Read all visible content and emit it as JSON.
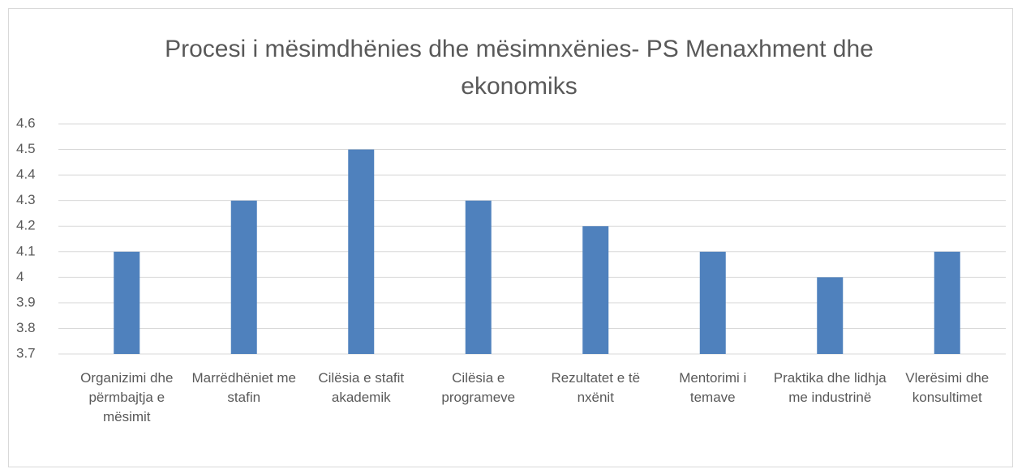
{
  "chart_data": {
    "type": "bar",
    "title": "Procesi i mësimdhënies dhe mësimnxënies- PS Menaxhment dhe ekonomiks",
    "categories": [
      "Organizimi dhe përmbajtja e mësimit",
      "Marrëdhëniet me stafin",
      "Cilësia e stafit akademik",
      "Cilësia e programeve",
      "Rezultatet e të nxënit",
      "Mentorimi i temave",
      "Praktika dhe lidhja me industrinë",
      "Vlerësimi dhe konsultimet"
    ],
    "values": [
      4.1,
      4.3,
      4.5,
      4.3,
      4.2,
      4.1,
      4.0,
      4.1
    ],
    "color": "#4f81bd",
    "ylim": [
      3.7,
      4.6
    ],
    "yticks": [
      3.7,
      3.8,
      3.9,
      4,
      4.1,
      4.2,
      4.3,
      4.4,
      4.5,
      4.6
    ],
    "grid": true
  }
}
